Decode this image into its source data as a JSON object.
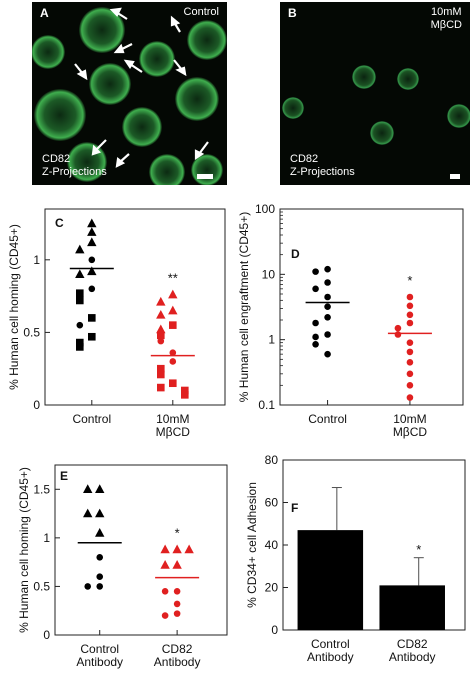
{
  "panels": {
    "A": {
      "letter": "A",
      "condition": "Control",
      "caption_line1": "CD82",
      "caption_line2": "Z-Projections"
    },
    "B": {
      "letter": "B",
      "condition_line1": "10mM",
      "condition_line2": "MβCD",
      "caption_line1": "CD82",
      "caption_line2": "Z-Projections"
    }
  },
  "chart_data": [
    {
      "panel": "C",
      "type": "scatter",
      "ylabel": "% Human cell homing (CD45+)",
      "ylim": [
        0,
        1.35
      ],
      "yticks": [
        0,
        0.5,
        1
      ],
      "yticklabels": [
        "0",
        "0.5",
        "1"
      ],
      "categories": [
        "Control",
        "10mM\nMβCD"
      ],
      "groups": [
        {
          "category": "Control",
          "color": "#000000",
          "mean": 0.94,
          "points": [
            {
              "y": 1.25,
              "marker": "triangle"
            },
            {
              "y": 1.19,
              "marker": "triangle"
            },
            {
              "y": 1.12,
              "marker": "triangle"
            },
            {
              "y": 1.07,
              "marker": "triangle"
            },
            {
              "y": 1.0,
              "marker": "circle"
            },
            {
              "y": 0.92,
              "marker": "triangle"
            },
            {
              "y": 0.9,
              "marker": "triangle"
            },
            {
              "y": 0.8,
              "marker": "circle"
            },
            {
              "y": 0.77,
              "marker": "square"
            },
            {
              "y": 0.72,
              "marker": "square"
            },
            {
              "y": 0.6,
              "marker": "square"
            },
            {
              "y": 0.55,
              "marker": "circle"
            },
            {
              "y": 0.47,
              "marker": "square"
            },
            {
              "y": 0.43,
              "marker": "square"
            },
            {
              "y": 0.4,
              "marker": "square"
            }
          ]
        },
        {
          "category": "10mM\nMβCD",
          "color": "#e02020",
          "mean": 0.34,
          "annotation": "**",
          "points": [
            {
              "y": 0.76,
              "marker": "triangle"
            },
            {
              "y": 0.71,
              "marker": "triangle"
            },
            {
              "y": 0.65,
              "marker": "triangle"
            },
            {
              "y": 0.62,
              "marker": "triangle"
            },
            {
              "y": 0.55,
              "marker": "square"
            },
            {
              "y": 0.52,
              "marker": "triangle"
            },
            {
              "y": 0.48,
              "marker": "square"
            },
            {
              "y": 0.44,
              "marker": "circle"
            },
            {
              "y": 0.36,
              "marker": "circle"
            },
            {
              "y": 0.3,
              "marker": "circle"
            },
            {
              "y": 0.25,
              "marker": "square"
            },
            {
              "y": 0.21,
              "marker": "square"
            },
            {
              "y": 0.15,
              "marker": "square"
            },
            {
              "y": 0.12,
              "marker": "square"
            },
            {
              "y": 0.1,
              "marker": "square"
            },
            {
              "y": 0.07,
              "marker": "square"
            }
          ]
        }
      ]
    },
    {
      "panel": "D",
      "type": "scatter",
      "ylabel": "% Human cell engraftment (CD45+)",
      "yscale": "log",
      "ylim": [
        0.1,
        100
      ],
      "yticks": [
        0.1,
        1,
        10,
        100
      ],
      "yticklabels": [
        "0.1",
        "1",
        "10",
        "100"
      ],
      "categories": [
        "Control",
        "10mM\nMβCD"
      ],
      "groups": [
        {
          "category": "Control",
          "color": "#000000",
          "mean": 3.7,
          "points": [
            {
              "y": 12,
              "marker": "circle"
            },
            {
              "y": 11,
              "marker": "circle"
            },
            {
              "y": 7.5,
              "marker": "circle"
            },
            {
              "y": 6,
              "marker": "circle"
            },
            {
              "y": 4.5,
              "marker": "circle"
            },
            {
              "y": 3.2,
              "marker": "circle"
            },
            {
              "y": 2.2,
              "marker": "circle"
            },
            {
              "y": 1.8,
              "marker": "circle"
            },
            {
              "y": 1.2,
              "marker": "circle"
            },
            {
              "y": 1.1,
              "marker": "circle"
            },
            {
              "y": 0.85,
              "marker": "circle"
            },
            {
              "y": 0.6,
              "marker": "circle"
            }
          ]
        },
        {
          "category": "10mM\nMβCD",
          "color": "#e02020",
          "mean": 1.25,
          "annotation": "*",
          "points": [
            {
              "y": 4.5,
              "marker": "circle"
            },
            {
              "y": 3.3,
              "marker": "circle"
            },
            {
              "y": 2.4,
              "marker": "circle"
            },
            {
              "y": 1.8,
              "marker": "circle"
            },
            {
              "y": 1.5,
              "marker": "circle"
            },
            {
              "y": 1.2,
              "marker": "circle"
            },
            {
              "y": 0.9,
              "marker": "circle"
            },
            {
              "y": 0.65,
              "marker": "circle"
            },
            {
              "y": 0.45,
              "marker": "circle"
            },
            {
              "y": 0.3,
              "marker": "circle"
            },
            {
              "y": 0.2,
              "marker": "circle"
            },
            {
              "y": 0.13,
              "marker": "circle"
            }
          ]
        }
      ]
    },
    {
      "panel": "E",
      "type": "scatter",
      "ylabel": "% Human cell homing (CD45+)",
      "ylim": [
        0,
        1.75
      ],
      "yticks": [
        0,
        0.5,
        1,
        1.5
      ],
      "yticklabels": [
        "0",
        "0.5",
        "1",
        "1.5"
      ],
      "categories": [
        "Control\nAntibody",
        "CD82\nAntibody"
      ],
      "groups": [
        {
          "category": "Control\nAntibody",
          "color": "#000000",
          "mean": 0.95,
          "points": [
            {
              "y": 1.5,
              "marker": "triangle"
            },
            {
              "y": 1.5,
              "marker": "triangle"
            },
            {
              "y": 1.25,
              "marker": "triangle"
            },
            {
              "y": 1.25,
              "marker": "triangle"
            },
            {
              "y": 1.05,
              "marker": "triangle"
            },
            {
              "y": 0.8,
              "marker": "circle"
            },
            {
              "y": 0.6,
              "marker": "circle"
            },
            {
              "y": 0.5,
              "marker": "circle"
            },
            {
              "y": 0.5,
              "marker": "circle"
            }
          ]
        },
        {
          "category": "CD82\nAntibody",
          "color": "#e02020",
          "mean": 0.59,
          "annotation": "*",
          "points": [
            {
              "y": 0.88,
              "marker": "triangle"
            },
            {
              "y": 0.88,
              "marker": "triangle"
            },
            {
              "y": 0.88,
              "marker": "triangle"
            },
            {
              "y": 0.72,
              "marker": "triangle"
            },
            {
              "y": 0.72,
              "marker": "triangle"
            },
            {
              "y": 0.45,
              "marker": "circle"
            },
            {
              "y": 0.45,
              "marker": "circle"
            },
            {
              "y": 0.32,
              "marker": "circle"
            },
            {
              "y": 0.22,
              "marker": "circle"
            },
            {
              "y": 0.2,
              "marker": "circle"
            }
          ]
        }
      ]
    },
    {
      "panel": "F",
      "type": "bar",
      "ylabel": "% CD34+ cell Adhesion",
      "ylim": [
        0,
        80
      ],
      "yticks": [
        0,
        20,
        40,
        60,
        80
      ],
      "yticklabels": [
        "0",
        "20",
        "40",
        "60",
        "80"
      ],
      "categories": [
        "Control\nAntibody",
        "CD82\nAntibody"
      ],
      "values": [
        47,
        21
      ],
      "errors": [
        20,
        13
      ],
      "annotations": [
        "",
        "*"
      ],
      "bar_color": "#000000"
    }
  ]
}
